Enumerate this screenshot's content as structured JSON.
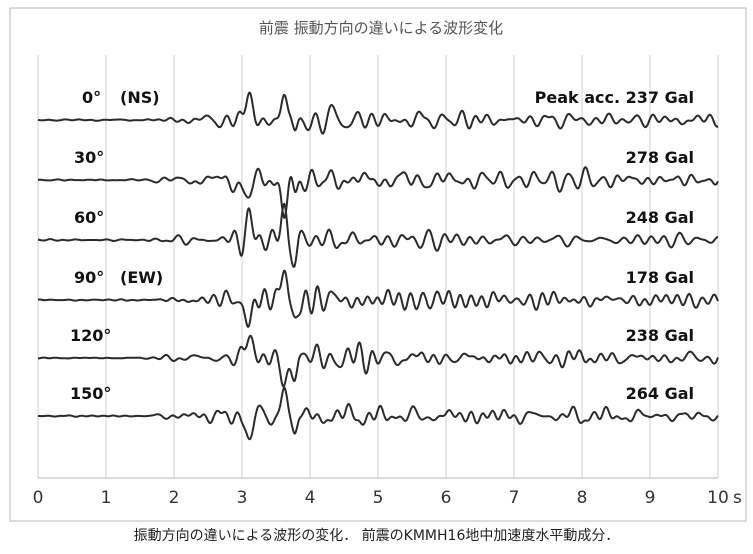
{
  "chart_data": {
    "type": "line",
    "title": "前震 振動方向の違いによる波形変化",
    "xlabel": "",
    "ylabel": "",
    "x_unit": "s",
    "xlim": [
      0,
      10
    ],
    "x_ticks": [
      0,
      1,
      2,
      3,
      4,
      5,
      6,
      7,
      8,
      9,
      10
    ],
    "x_tick_labels": [
      "0",
      "1",
      "2",
      "3",
      "4",
      "5",
      "6",
      "7",
      "8",
      "9",
      "10"
    ],
    "grid": true,
    "colors": {
      "trace": "#2b2b2b",
      "grid": "#d0d0d0",
      "frame": "#b8b8b8",
      "text": "#111111"
    },
    "series": [
      {
        "name": "0°",
        "component": "(NS)",
        "peak_label": "Peak acc. 237 Gal",
        "peak_gal": 237
      },
      {
        "name": "30°",
        "component": "",
        "peak_label": "278 Gal",
        "peak_gal": 278
      },
      {
        "name": "60°",
        "component": "",
        "peak_label": "248 Gal",
        "peak_gal": 248
      },
      {
        "name": "90°",
        "component": "(EW)",
        "peak_label": "178 Gal",
        "peak_gal": 178
      },
      {
        "name": "120°",
        "component": "",
        "peak_label": "238 Gal",
        "peak_gal": 238
      },
      {
        "name": "150°",
        "component": "",
        "peak_label": "264 Gal",
        "peak_gal": 264
      }
    ]
  },
  "caption": "振動方向の違いによる波形の変化． 前震のKMMH16地中加速度水平動成分．"
}
